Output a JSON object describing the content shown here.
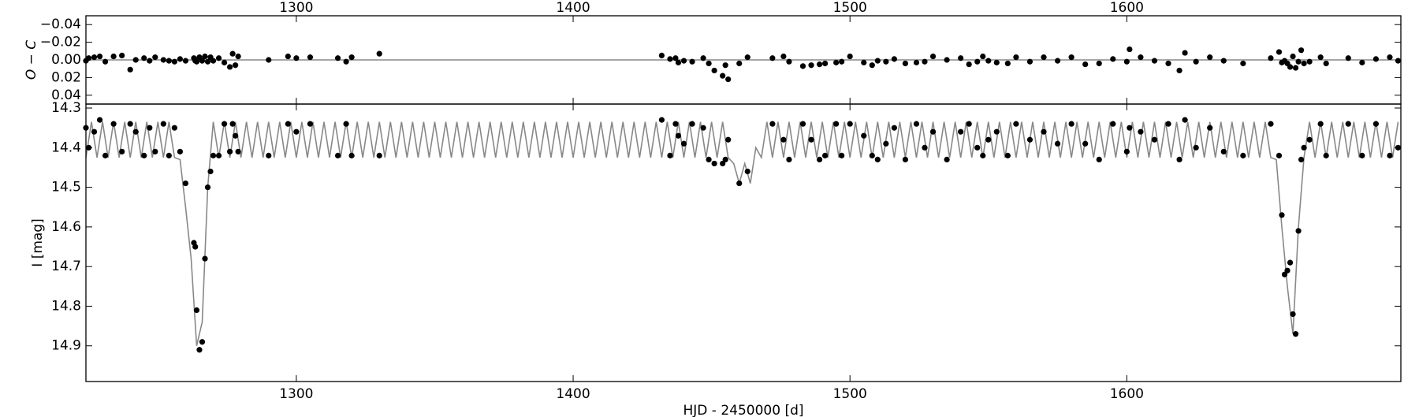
{
  "chart_data": [
    {
      "type": "scatter",
      "ylabel": "O − C",
      "color": "#000000",
      "y_inverted": true,
      "reference_line": 0,
      "reference_color": "#888888",
      "xlim": [
        1224,
        1699
      ],
      "xticks": [
        1300,
        1400,
        1500,
        1600
      ],
      "ylim": [
        -0.05,
        0.05
      ],
      "yticks": [
        {
          "value": -0.04,
          "label": "−0.04"
        },
        {
          "value": -0.02,
          "label": "−0.02"
        },
        {
          "value": 0,
          "label": "0.00"
        },
        {
          "value": 0.02,
          "label": "0.02"
        },
        {
          "value": 0.04,
          "label": "0.04"
        }
      ],
      "x": [
        1224,
        1225,
        1227,
        1229,
        1231,
        1234,
        1237,
        1240,
        1242,
        1245,
        1247,
        1249,
        1252,
        1254,
        1256,
        1258,
        1260,
        1263,
        1263.5,
        1264,
        1265,
        1266,
        1267,
        1268,
        1269,
        1270,
        1272,
        1274,
        1276,
        1277,
        1278,
        1279,
        1290,
        1297,
        1300,
        1305,
        1315,
        1318,
        1320,
        1330,
        1432,
        1435,
        1437,
        1438,
        1440,
        1443,
        1447,
        1449,
        1451,
        1454,
        1455,
        1456,
        1460,
        1463,
        1472,
        1476,
        1478,
        1483,
        1486,
        1489,
        1491,
        1495,
        1497,
        1500,
        1505,
        1508,
        1510,
        1513,
        1516,
        1520,
        1524,
        1527,
        1530,
        1535,
        1540,
        1543,
        1546,
        1548,
        1550,
        1553,
        1557,
        1560,
        1565,
        1570,
        1575,
        1580,
        1585,
        1590,
        1595,
        1600,
        1601,
        1605,
        1610,
        1615,
        1619,
        1621,
        1625,
        1630,
        1635,
        1642,
        1652,
        1655,
        1656,
        1657,
        1658,
        1659,
        1660,
        1661,
        1662,
        1663,
        1664,
        1666,
        1670,
        1672,
        1680,
        1685,
        1690,
        1695,
        1698
      ],
      "values": [
        0.001,
        -0.002,
        -0.003,
        -0.004,
        0.002,
        -0.004,
        -0.005,
        0.011,
        0.0,
        -0.002,
        0.001,
        -0.003,
        0.0,
        0.001,
        0.002,
        -0.001,
        0.001,
        -0.002,
        0.001,
        0.002,
        -0.003,
        0.001,
        -0.004,
        0.002,
        -0.003,
        0.001,
        -0.002,
        0.003,
        0.008,
        -0.007,
        0.006,
        -0.004,
        0.0,
        -0.004,
        -0.002,
        -0.003,
        -0.002,
        0.002,
        -0.003,
        -0.007,
        -0.005,
        -0.001,
        -0.002,
        0.003,
        0.001,
        0.002,
        -0.002,
        0.004,
        0.012,
        0.018,
        0.006,
        0.022,
        0.004,
        -0.003,
        -0.002,
        -0.004,
        0.002,
        0.007,
        0.006,
        0.005,
        0.004,
        0.003,
        0.002,
        -0.004,
        0.003,
        0.006,
        0.001,
        0.002,
        -0.001,
        0.004,
        0.003,
        0.002,
        -0.004,
        0.0,
        -0.002,
        0.005,
        0.002,
        -0.004,
        0.001,
        0.003,
        0.004,
        -0.003,
        0.002,
        -0.003,
        0.001,
        -0.003,
        0.005,
        0.004,
        -0.001,
        0.002,
        -0.012,
        -0.003,
        0.001,
        0.004,
        0.012,
        -0.008,
        0.002,
        -0.003,
        0.001,
        0.004,
        -0.002,
        -0.009,
        0.003,
        0.001,
        0.004,
        0.008,
        -0.004,
        0.009,
        0.002,
        -0.011,
        0.004,
        0.002,
        -0.003,
        0.004,
        -0.002,
        0.003,
        -0.001,
        -0.003,
        0.001
      ]
    },
    {
      "type": "scatter",
      "ylabel": "I [mag]",
      "xlabel": "HJD - 2450000 [d]",
      "color": "#000000",
      "y_inverted": true,
      "xlim": [
        1224,
        1699
      ],
      "xticks": [
        1300,
        1400,
        1500,
        1600
      ],
      "ylim": [
        14.29,
        14.99
      ],
      "yticks": [
        14.3,
        14.4,
        14.5,
        14.6,
        14.7,
        14.8,
        14.9
      ],
      "x": [
        1224,
        1225,
        1227,
        1229,
        1231,
        1234,
        1237,
        1240,
        1242,
        1245,
        1247,
        1249,
        1252,
        1254,
        1256,
        1258,
        1260,
        1263,
        1263.5,
        1264,
        1265,
        1266,
        1267,
        1268,
        1269,
        1270,
        1272,
        1274,
        1276,
        1277,
        1278,
        1279,
        1290,
        1297,
        1300,
        1305,
        1315,
        1318,
        1320,
        1330,
        1432,
        1435,
        1437,
        1438,
        1440,
        1443,
        1447,
        1449,
        1451,
        1454,
        1455,
        1456,
        1460,
        1463,
        1472,
        1476,
        1478,
        1483,
        1486,
        1489,
        1491,
        1495,
        1497,
        1500,
        1505,
        1508,
        1510,
        1513,
        1516,
        1520,
        1524,
        1527,
        1530,
        1535,
        1540,
        1543,
        1546,
        1548,
        1550,
        1553,
        1557,
        1560,
        1565,
        1570,
        1575,
        1580,
        1585,
        1590,
        1595,
        1600,
        1601,
        1605,
        1610,
        1615,
        1619,
        1621,
        1625,
        1630,
        1635,
        1642,
        1652,
        1655,
        1656,
        1657,
        1658,
        1659,
        1660,
        1661,
        1662,
        1663,
        1664,
        1666,
        1670,
        1672,
        1680,
        1685,
        1690,
        1695,
        1698
      ],
      "values": [
        14.35,
        14.4,
        14.36,
        14.33,
        14.42,
        14.34,
        14.41,
        14.34,
        14.36,
        14.42,
        14.35,
        14.41,
        14.34,
        14.42,
        14.35,
        14.41,
        14.49,
        14.64,
        14.65,
        14.81,
        14.91,
        14.89,
        14.68,
        14.5,
        14.46,
        14.42,
        14.42,
        14.34,
        14.41,
        14.34,
        14.37,
        14.41,
        14.42,
        14.34,
        14.36,
        14.34,
        14.42,
        14.34,
        14.42,
        14.42,
        14.33,
        14.42,
        14.34,
        14.37,
        14.39,
        14.34,
        14.35,
        14.43,
        14.44,
        14.44,
        14.43,
        14.38,
        14.49,
        14.46,
        14.34,
        14.38,
        14.43,
        14.34,
        14.38,
        14.43,
        14.42,
        14.34,
        14.42,
        14.34,
        14.37,
        14.42,
        14.43,
        14.39,
        14.35,
        14.43,
        14.34,
        14.4,
        14.36,
        14.43,
        14.36,
        14.34,
        14.4,
        14.42,
        14.38,
        14.36,
        14.42,
        14.34,
        14.38,
        14.36,
        14.39,
        14.34,
        14.39,
        14.43,
        14.34,
        14.41,
        14.35,
        14.36,
        14.38,
        14.34,
        14.43,
        14.33,
        14.4,
        14.35,
        14.41,
        14.42,
        14.34,
        14.42,
        14.57,
        14.72,
        14.71,
        14.69,
        14.82,
        14.87,
        14.61,
        14.43,
        14.4,
        14.38,
        14.34,
        14.42,
        14.34,
        14.42,
        14.34,
        14.42,
        14.4
      ],
      "line": {
        "color": "#888888",
        "x": [
          1224,
          1226,
          1228,
          1230,
          1232,
          1234,
          1236,
          1238,
          1240,
          1242,
          1244,
          1246,
          1248,
          1250,
          1252,
          1254,
          1256,
          1258,
          1260,
          1262,
          1264,
          1266,
          1268,
          1270,
          1272,
          1274,
          1276,
          1278,
          1280,
          1282,
          1284,
          1286,
          1288,
          1290,
          1292,
          1294,
          1296,
          1298,
          1300,
          1302,
          1304,
          1306,
          1308,
          1310,
          1312,
          1314,
          1316,
          1318,
          1320,
          1322,
          1324,
          1326,
          1328,
          1330,
          1332,
          1334,
          1336,
          1338,
          1340,
          1342,
          1344,
          1346,
          1348,
          1350,
          1352,
          1354,
          1356,
          1358,
          1360,
          1362,
          1364,
          1366,
          1368,
          1370,
          1372,
          1374,
          1376,
          1378,
          1380,
          1382,
          1384,
          1386,
          1388,
          1390,
          1392,
          1394,
          1396,
          1398,
          1400,
          1402,
          1404,
          1406,
          1408,
          1410,
          1412,
          1414,
          1416,
          1418,
          1420,
          1422,
          1424,
          1426,
          1428,
          1430,
          1432,
          1434,
          1436,
          1438,
          1440,
          1442,
          1444,
          1446,
          1448,
          1450,
          1452,
          1454,
          1456,
          1458,
          1460,
          1462,
          1464,
          1466,
          1468,
          1470,
          1472,
          1474,
          1476,
          1478,
          1480,
          1482,
          1484,
          1486,
          1488,
          1490,
          1492,
          1494,
          1496,
          1498,
          1500,
          1502,
          1504,
          1506,
          1508,
          1510,
          1512,
          1514,
          1516,
          1518,
          1520,
          1522,
          1524,
          1526,
          1528,
          1530,
          1532,
          1534,
          1536,
          1538,
          1540,
          1542,
          1544,
          1546,
          1548,
          1550,
          1552,
          1554,
          1556,
          1558,
          1560,
          1562,
          1564,
          1566,
          1568,
          1570,
          1572,
          1574,
          1576,
          1578,
          1580,
          1582,
          1584,
          1586,
          1588,
          1590,
          1592,
          1594,
          1596,
          1598,
          1600,
          1602,
          1604,
          1606,
          1608,
          1610,
          1612,
          1614,
          1616,
          1618,
          1620,
          1622,
          1624,
          1626,
          1628,
          1630,
          1632,
          1634,
          1636,
          1638,
          1640,
          1642,
          1644,
          1646,
          1648,
          1650,
          1652,
          1654,
          1656,
          1658,
          1660,
          1662,
          1664,
          1666,
          1668,
          1670,
          1672,
          1674,
          1676,
          1678,
          1680,
          1682,
          1684,
          1686,
          1688,
          1690,
          1692,
          1694,
          1696,
          1698
        ],
        "values": [
          14.425,
          14.335,
          14.425,
          14.335,
          14.425,
          14.335,
          14.425,
          14.335,
          14.425,
          14.335,
          14.425,
          14.335,
          14.425,
          14.335,
          14.425,
          14.335,
          14.425,
          14.43,
          14.55,
          14.68,
          14.9,
          14.84,
          14.5,
          14.335,
          14.425,
          14.335,
          14.425,
          14.335,
          14.425,
          14.335,
          14.425,
          14.335,
          14.425,
          14.335,
          14.425,
          14.335,
          14.425,
          14.335,
          14.425,
          14.335,
          14.425,
          14.335,
          14.425,
          14.335,
          14.425,
          14.335,
          14.425,
          14.335,
          14.425,
          14.335,
          14.425,
          14.335,
          14.425,
          14.335,
          14.425,
          14.335,
          14.425,
          14.335,
          14.425,
          14.335,
          14.425,
          14.335,
          14.425,
          14.335,
          14.425,
          14.335,
          14.425,
          14.335,
          14.425,
          14.335,
          14.425,
          14.335,
          14.425,
          14.335,
          14.425,
          14.335,
          14.425,
          14.335,
          14.425,
          14.335,
          14.425,
          14.335,
          14.425,
          14.335,
          14.425,
          14.335,
          14.425,
          14.335,
          14.425,
          14.335,
          14.425,
          14.335,
          14.425,
          14.335,
          14.425,
          14.335,
          14.425,
          14.335,
          14.425,
          14.335,
          14.425,
          14.335,
          14.425,
          14.335,
          14.425,
          14.335,
          14.425,
          14.335,
          14.425,
          14.335,
          14.425,
          14.335,
          14.425,
          14.335,
          14.425,
          14.335,
          14.425,
          14.44,
          14.49,
          14.44,
          14.49,
          14.4,
          14.425,
          14.335,
          14.425,
          14.335,
          14.425,
          14.335,
          14.425,
          14.335,
          14.425,
          14.335,
          14.425,
          14.335,
          14.425,
          14.335,
          14.425,
          14.335,
          14.425,
          14.335,
          14.425,
          14.335,
          14.425,
          14.335,
          14.425,
          14.335,
          14.425,
          14.335,
          14.425,
          14.335,
          14.425,
          14.335,
          14.425,
          14.335,
          14.425,
          14.335,
          14.425,
          14.335,
          14.425,
          14.335,
          14.425,
          14.335,
          14.425,
          14.335,
          14.425,
          14.335,
          14.425,
          14.335,
          14.425,
          14.335,
          14.425,
          14.335,
          14.425,
          14.335,
          14.425,
          14.335,
          14.425,
          14.335,
          14.425,
          14.335,
          14.425,
          14.335,
          14.425,
          14.335,
          14.425,
          14.335,
          14.425,
          14.335,
          14.425,
          14.335,
          14.425,
          14.335,
          14.425,
          14.335,
          14.425,
          14.335,
          14.425,
          14.335,
          14.425,
          14.335,
          14.425,
          14.335,
          14.425,
          14.335,
          14.425,
          14.335,
          14.425,
          14.335,
          14.425,
          14.335,
          14.425,
          14.335,
          14.425,
          14.335,
          14.425,
          14.43,
          14.6,
          14.75,
          14.87,
          14.6,
          14.425,
          14.335,
          14.425,
          14.335,
          14.425,
          14.335,
          14.425,
          14.335,
          14.425,
          14.335,
          14.425,
          14.335,
          14.425,
          14.335,
          14.425,
          14.335,
          14.425,
          14.335
        ]
      }
    }
  ]
}
